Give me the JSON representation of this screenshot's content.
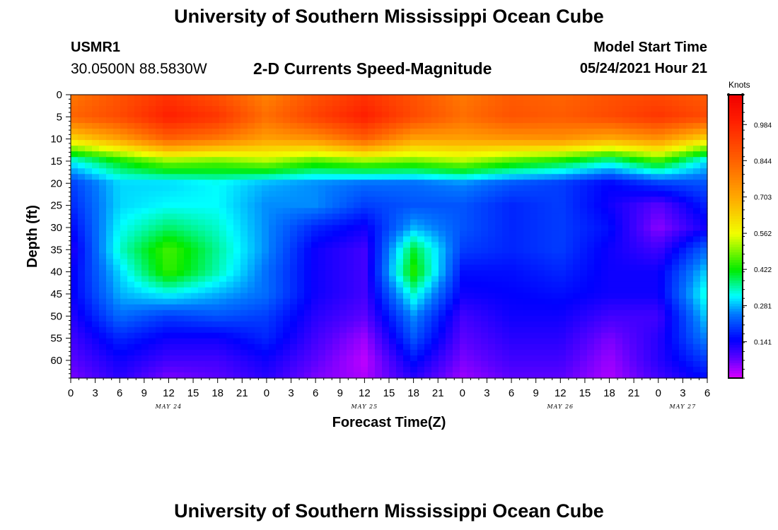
{
  "header": {
    "title": "University of Southern Mississippi Ocean Cube",
    "station": "USMR1",
    "coords": "30.0500N  88.5830W",
    "subtitle": "2-D Currents Speed-Magnitude",
    "model_label": "Model Start Time",
    "model_time": "05/24/2021 Hour 21"
  },
  "footer": {
    "title": "University of Southern Mississippi Ocean Cube"
  },
  "chart_data": {
    "type": "heatmap",
    "title": "2-D Currents Speed-Magnitude",
    "xlabel": "Forecast Time(Z)",
    "ylabel": "Depth (ft)",
    "units": "Knots",
    "x_ticks": [
      "0",
      "3",
      "6",
      "9",
      "12",
      "15",
      "18",
      "21",
      "0",
      "3",
      "6",
      "9",
      "12",
      "15",
      "18",
      "21",
      "0",
      "3",
      "6",
      "9",
      "12",
      "15",
      "18",
      "21",
      "0",
      "3",
      "6"
    ],
    "x_hours": [
      0,
      3,
      6,
      9,
      12,
      15,
      18,
      21,
      24,
      27,
      30,
      33,
      36,
      39,
      42,
      45,
      48,
      51,
      54,
      57,
      60,
      63,
      66,
      69,
      72,
      75,
      78
    ],
    "date_labels": [
      {
        "label": "MAY 24",
        "hour": 12
      },
      {
        "label": "MAY 25",
        "hour": 36
      },
      {
        "label": "MAY 26",
        "hour": 60
      },
      {
        "label": "MAY 27",
        "hour": 75
      }
    ],
    "y_ticks": [
      0,
      5,
      10,
      15,
      20,
      25,
      30,
      35,
      40,
      45,
      50,
      55,
      60
    ],
    "ylim": [
      0,
      64
    ],
    "xlim": [
      0,
      78
    ],
    "colorbar": {
      "labels": [
        "0.984",
        "0.844",
        "0.703",
        "0.562",
        "0.422",
        "0.281",
        "0.141"
      ],
      "values": [
        0.984,
        0.844,
        0.703,
        0.562,
        0.422,
        0.281,
        0.141
      ],
      "range": [
        0.0,
        1.1
      ]
    },
    "time_hours": [
      0,
      6,
      12,
      18,
      24,
      30,
      36,
      42,
      48,
      54,
      60,
      66,
      72,
      78
    ],
    "depths_ft": [
      0,
      5,
      10,
      15,
      20,
      25,
      30,
      35,
      40,
      45,
      50,
      55,
      60,
      64
    ],
    "speed_knots": [
      [
        0.8,
        0.88,
        0.95,
        0.88,
        0.78,
        0.88,
        0.95,
        0.88,
        0.8,
        0.86,
        0.84,
        0.88,
        0.9,
        0.86
      ],
      [
        0.84,
        0.9,
        1.0,
        0.95,
        0.82,
        0.92,
        1.0,
        0.9,
        0.82,
        0.88,
        0.86,
        0.9,
        0.95,
        0.9
      ],
      [
        0.62,
        0.72,
        0.85,
        0.8,
        0.72,
        0.75,
        0.85,
        0.72,
        0.72,
        0.74,
        0.75,
        0.7,
        0.75,
        0.62
      ],
      [
        0.32,
        0.42,
        0.5,
        0.48,
        0.52,
        0.46,
        0.5,
        0.48,
        0.52,
        0.46,
        0.42,
        0.35,
        0.45,
        0.3
      ],
      [
        0.2,
        0.3,
        0.3,
        0.32,
        0.28,
        0.26,
        0.24,
        0.24,
        0.26,
        0.22,
        0.2,
        0.15,
        0.2,
        0.22
      ],
      [
        0.18,
        0.3,
        0.32,
        0.32,
        0.26,
        0.26,
        0.2,
        0.22,
        0.22,
        0.18,
        0.2,
        0.14,
        0.08,
        0.18
      ],
      [
        0.15,
        0.32,
        0.38,
        0.34,
        0.26,
        0.18,
        0.14,
        0.28,
        0.22,
        0.18,
        0.2,
        0.16,
        0.05,
        0.14
      ],
      [
        0.12,
        0.34,
        0.46,
        0.36,
        0.26,
        0.14,
        0.1,
        0.4,
        0.2,
        0.18,
        0.2,
        0.14,
        0.1,
        0.24
      ],
      [
        0.14,
        0.3,
        0.45,
        0.35,
        0.24,
        0.14,
        0.1,
        0.44,
        0.16,
        0.16,
        0.18,
        0.14,
        0.14,
        0.3
      ],
      [
        0.14,
        0.28,
        0.32,
        0.28,
        0.24,
        0.14,
        0.1,
        0.34,
        0.14,
        0.15,
        0.16,
        0.14,
        0.14,
        0.34
      ],
      [
        0.12,
        0.24,
        0.2,
        0.22,
        0.2,
        0.12,
        0.08,
        0.26,
        0.1,
        0.14,
        0.14,
        0.1,
        0.1,
        0.3
      ],
      [
        0.1,
        0.18,
        0.14,
        0.14,
        0.18,
        0.1,
        0.04,
        0.22,
        0.08,
        0.12,
        0.12,
        0.06,
        0.12,
        0.26
      ],
      [
        0.08,
        0.14,
        0.1,
        0.1,
        0.14,
        0.08,
        0.02,
        0.16,
        0.06,
        0.1,
        0.1,
        0.04,
        0.12,
        0.2
      ],
      [
        0.06,
        0.12,
        0.06,
        0.08,
        0.12,
        0.06,
        0.03,
        0.12,
        0.04,
        0.08,
        0.08,
        0.03,
        0.1,
        0.16
      ]
    ]
  }
}
